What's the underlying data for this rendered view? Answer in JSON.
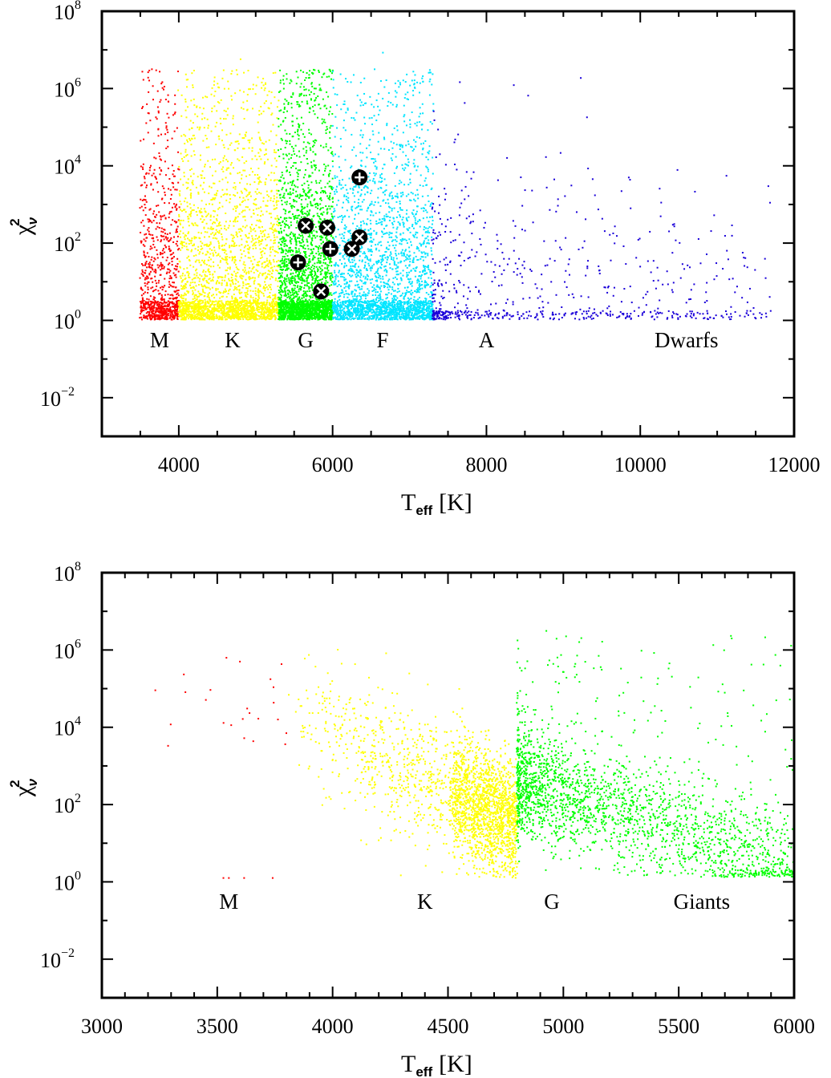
{
  "chart_data": [
    {
      "type": "scatter",
      "panel": "Dwarfs",
      "xlabel": "T",
      "xlabel_sub": "eff",
      "xlabel_unit": "[K]",
      "ylabel": "χ",
      "ylabel_sup": "2",
      "ylabel_sub": "ν",
      "xlim": [
        3000,
        12000
      ],
      "ylim_log10": [
        -3,
        8
      ],
      "y_scale": "log",
      "x_ticks": [
        4000,
        6000,
        8000,
        10000,
        12000
      ],
      "x_tick_labels": [
        "4000",
        "6000",
        "8000",
        "10000",
        "12000"
      ],
      "y_ticks_exp": [
        -2,
        0,
        2,
        4,
        6,
        8
      ],
      "y_tick_base": "10",
      "y_tick_exponents": [
        "−2",
        "0",
        "2",
        "4",
        "6",
        "8"
      ],
      "class_labels": [
        {
          "text": "M",
          "x": 3750
        },
        {
          "text": "K",
          "x": 4700
        },
        {
          "text": "G",
          "x": 5650
        },
        {
          "text": "F",
          "x": 6650
        },
        {
          "text": "A",
          "x": 8000
        },
        {
          "text": "Dwarfs",
          "x": 10600
        }
      ],
      "series": [
        {
          "name": "M",
          "color": "#ff0000",
          "x_range": [
            3500,
            4000
          ],
          "density": "high"
        },
        {
          "name": "K",
          "color": "#ffff00",
          "x_range": [
            4000,
            5300
          ],
          "density": "dense"
        },
        {
          "name": "G",
          "color": "#00ff00",
          "x_range": [
            5300,
            6000
          ],
          "density": "dense"
        },
        {
          "name": "F",
          "color": "#00e5ff",
          "x_range": [
            6000,
            7300
          ],
          "density": "dense"
        },
        {
          "name": "A",
          "color": "#1a00d9",
          "x_range": [
            7300,
            11700
          ],
          "density": "sparse"
        }
      ],
      "special_points": [
        {
          "x": 5650,
          "y_log10": 2.45,
          "marker": "cross-circle"
        },
        {
          "x": 5930,
          "y_log10": 2.4,
          "marker": "cross-circle"
        },
        {
          "x": 6250,
          "y_log10": 1.85,
          "marker": "cross-circle"
        },
        {
          "x": 6350,
          "y_log10": 2.15,
          "marker": "cross-circle"
        },
        {
          "x": 5850,
          "y_log10": 0.75,
          "marker": "cross-circle"
        },
        {
          "x": 5550,
          "y_log10": 1.5,
          "marker": "plus-circle"
        },
        {
          "x": 5970,
          "y_log10": 1.85,
          "marker": "plus-circle"
        },
        {
          "x": 6350,
          "y_log10": 3.7,
          "marker": "plus-circle"
        }
      ]
    },
    {
      "type": "scatter",
      "panel": "Giants",
      "xlabel": "T",
      "xlabel_sub": "eff",
      "xlabel_unit": "[K]",
      "ylabel": "χ",
      "ylabel_sup": "2",
      "ylabel_sub": "ν",
      "xlim": [
        3000,
        6000
      ],
      "ylim_log10": [
        -3,
        8
      ],
      "y_scale": "log",
      "x_ticks": [
        3000,
        3500,
        4000,
        4500,
        5000,
        5500,
        6000
      ],
      "x_tick_labels": [
        "3000",
        "3500",
        "4000",
        "4500",
        "5000",
        "5500",
        "6000"
      ],
      "y_ticks_exp": [
        -2,
        0,
        2,
        4,
        6,
        8
      ],
      "y_tick_base": "10",
      "y_tick_exponents": [
        "−2",
        "0",
        "2",
        "4",
        "6",
        "8"
      ],
      "class_labels": [
        {
          "text": "M",
          "x": 3550
        },
        {
          "text": "K",
          "x": 4400
        },
        {
          "text": "G",
          "x": 4950
        },
        {
          "text": "Giants",
          "x": 5600
        }
      ],
      "series": [
        {
          "name": "M",
          "color": "#ff0000",
          "x_range": [
            3200,
            3800
          ],
          "density": "sparse"
        },
        {
          "name": "K",
          "color": "#ffff00",
          "x_range": [
            3800,
            4800
          ],
          "density": "medium"
        },
        {
          "name": "G",
          "color": "#00ff00",
          "x_range": [
            4800,
            6000
          ],
          "density": "medium"
        }
      ]
    }
  ]
}
